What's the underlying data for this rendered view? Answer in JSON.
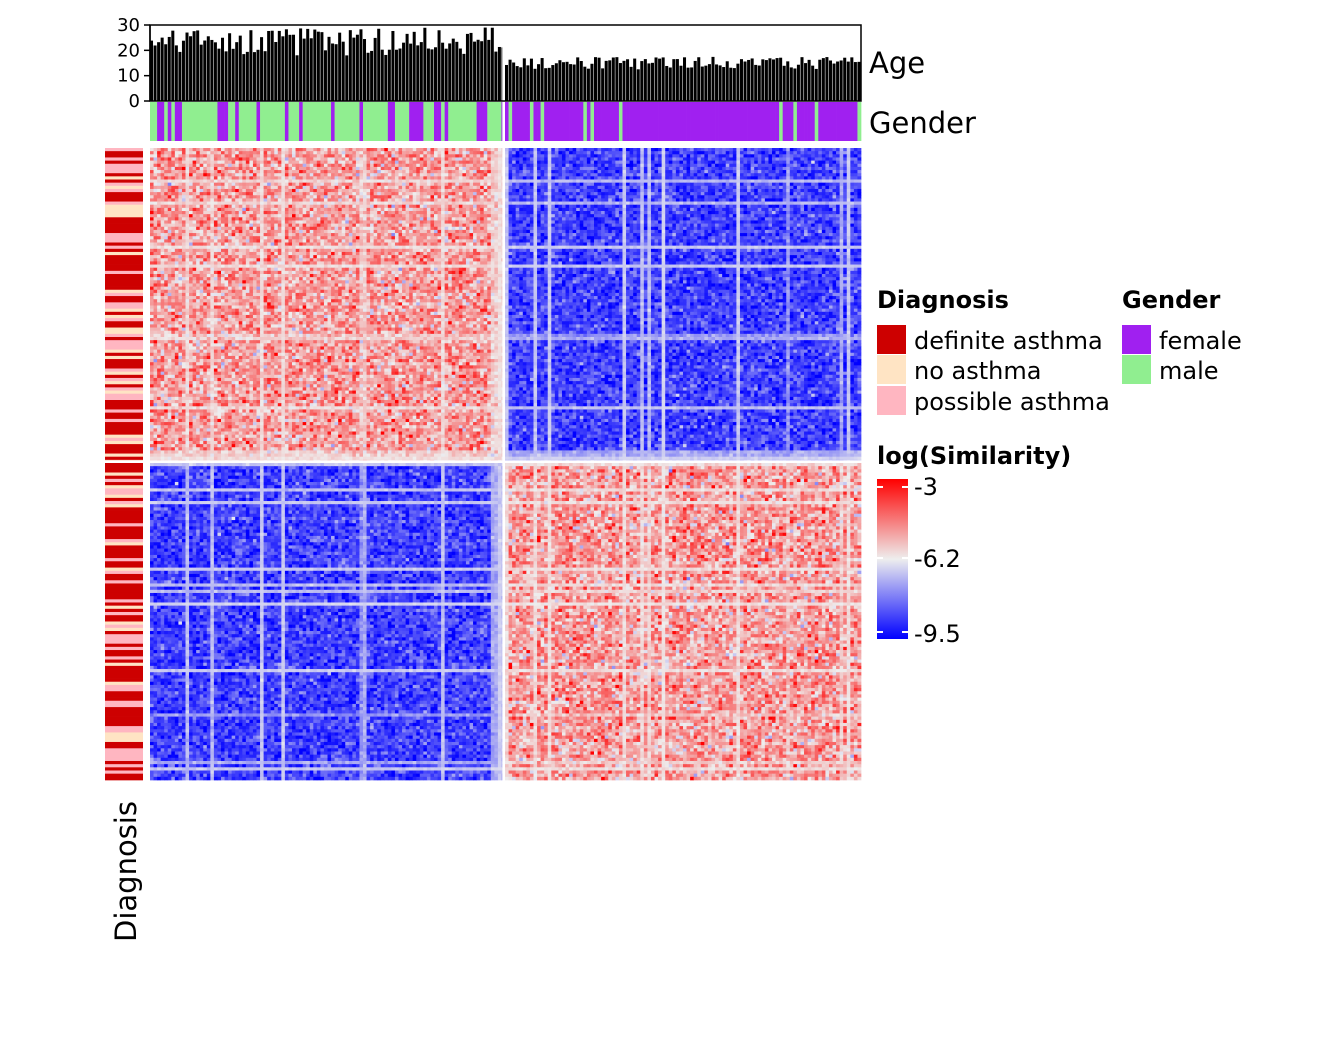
{
  "chart_data": {
    "type": "heatmap",
    "n_samples": 200,
    "n_clusters": 2,
    "cluster_sizes": [
      100,
      100
    ],
    "top_annotation": {
      "age": {
        "label": "Age",
        "type": "bar",
        "ylim": [
          0,
          30
        ],
        "ticks": [
          "0",
          "10",
          "20",
          "30"
        ],
        "cluster_means": [
          24,
          15
        ]
      },
      "gender": {
        "label": "Gender"
      }
    },
    "left_annotation": {
      "label": "Diagnosis"
    },
    "color_scale": {
      "title": "log(Similarity)",
      "min": -9.5,
      "mid": -6.2,
      "max": -3,
      "tick_labels": [
        "-3",
        "-6.2",
        "-9.5"
      ],
      "colors": [
        "#0000ff",
        "#eeeeee",
        "#ff0000"
      ]
    },
    "legends": {
      "diagnosis": {
        "title": "Diagnosis",
        "entries": [
          {
            "label": "definite asthma",
            "color": "#cd0000"
          },
          {
            "label": "no asthma",
            "color": "#ffe4c4"
          },
          {
            "label": "possible asthma",
            "color": "#ffb6c1"
          }
        ]
      },
      "gender": {
        "title": "Gender",
        "entries": [
          {
            "label": "female",
            "color": "#a020f0"
          },
          {
            "label": "male",
            "color": "#90ee90"
          }
        ]
      }
    }
  }
}
